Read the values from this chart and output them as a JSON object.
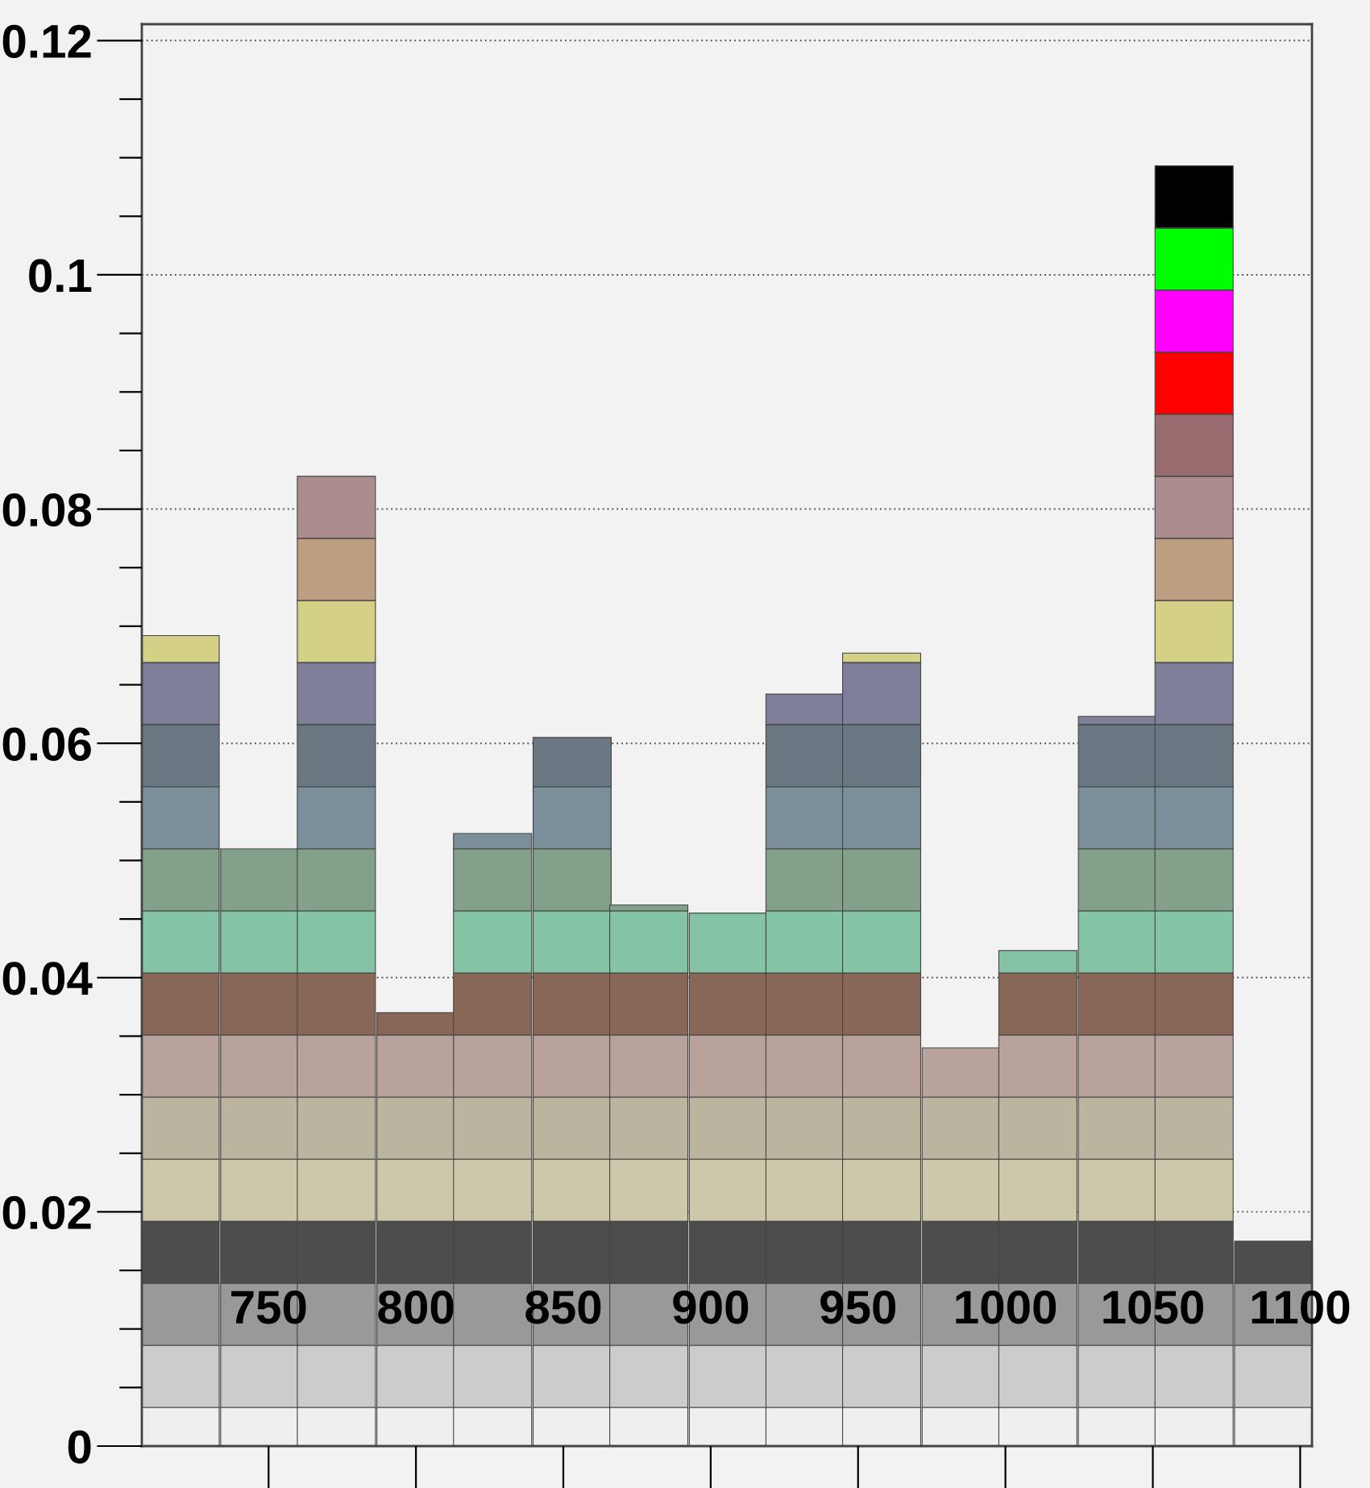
{
  "chart_data": {
    "type": "bar",
    "stacked": true,
    "x": [
      720,
      747,
      773,
      800,
      826,
      853,
      879,
      906,
      932,
      958,
      985,
      1011,
      1038,
      1064,
      1091
    ],
    "xlim": [
      707,
      1104
    ],
    "xticks": [
      750,
      800,
      850,
      900,
      950,
      1000,
      1050,
      1100
    ],
    "ylim": [
      0,
      0.1214
    ],
    "yticks": [
      0,
      {
        "value": 0.005,
        "label": null
      },
      {
        "value": 0.01,
        "label": null
      },
      {
        "value": 0.015,
        "label": null
      },
      0.02,
      {
        "value": 0.025,
        "label": null
      },
      {
        "value": 0.03,
        "label": null
      },
      {
        "value": 0.035,
        "label": null
      },
      0.04,
      {
        "value": 0.045,
        "label": null
      },
      {
        "value": 0.05,
        "label": null
      },
      {
        "value": 0.055,
        "label": null
      },
      0.06,
      {
        "value": 0.065,
        "label": null
      },
      {
        "value": 0.07,
        "label": null
      },
      {
        "value": 0.075,
        "label": null
      },
      0.08,
      {
        "value": 0.085,
        "label": null
      },
      {
        "value": 0.09,
        "label": null
      },
      {
        "value": 0.095,
        "label": null
      },
      0.1,
      {
        "value": 0.105,
        "label": null
      },
      {
        "value": 0.11,
        "label": null
      },
      {
        "value": 0.115,
        "label": null
      },
      0.12
    ],
    "grid": "y",
    "series": [
      {
        "color": "#efefef",
        "values": [
          0.0033,
          0.0033,
          0.0033,
          0.0033,
          0.0033,
          0.0033,
          0.0033,
          0.0033,
          0.0033,
          0.0033,
          0.0033,
          0.0033,
          0.0033,
          0.0033,
          0.0033
        ]
      },
      {
        "color": "#cccccc",
        "values": [
          0.0053,
          0.0053,
          0.0053,
          0.0053,
          0.0053,
          0.0053,
          0.0053,
          0.0053,
          0.0053,
          0.0053,
          0.0053,
          0.0053,
          0.0053,
          0.0053,
          0.0053
        ]
      },
      {
        "color": "#999999",
        "values": [
          0.0053,
          0.0053,
          0.0053,
          0.0053,
          0.0053,
          0.0053,
          0.0053,
          0.0053,
          0.0053,
          0.0053,
          0.0053,
          0.0053,
          0.0053,
          0.0053,
          0.0053
        ]
      },
      {
        "color": "#4d4d4d",
        "values": [
          0.0053,
          0.0053,
          0.0053,
          0.0053,
          0.0053,
          0.0053,
          0.0053,
          0.0053,
          0.0053,
          0.0053,
          0.0053,
          0.0053,
          0.0053,
          0.0053,
          0.0036
        ]
      },
      {
        "color": "#cdc8a9",
        "values": [
          0.0053,
          0.0053,
          0.0053,
          0.0053,
          0.0053,
          0.0053,
          0.0053,
          0.0053,
          0.0053,
          0.0053,
          0.0053,
          0.0053,
          0.0053,
          0.0053,
          null
        ]
      },
      {
        "color": "#bbb5a0",
        "values": [
          0.0053,
          0.0053,
          0.0053,
          0.0053,
          0.0053,
          0.0053,
          0.0053,
          0.0053,
          0.0053,
          0.0053,
          0.0053,
          0.0053,
          0.0053,
          0.0053,
          null
        ]
      },
      {
        "color": "#b8a29b",
        "values": [
          0.0053,
          0.0053,
          0.0053,
          0.0053,
          0.0053,
          0.0053,
          0.0053,
          0.0053,
          0.0053,
          0.0053,
          0.0042,
          0.0053,
          0.0053,
          0.0053,
          null
        ]
      },
      {
        "color": "#896757",
        "values": [
          0.0053,
          0.0053,
          0.0053,
          0.0019,
          0.0053,
          0.0053,
          0.0053,
          0.0053,
          0.0053,
          0.0053,
          null,
          0.0053,
          0.0053,
          0.0053,
          null
        ]
      },
      {
        "color": "#84c3a3",
        "values": [
          0.0053,
          0.0053,
          0.0053,
          null,
          0.0053,
          0.0053,
          0.0053,
          0.0051,
          0.0053,
          0.0053,
          null,
          0.0019,
          0.0053,
          0.0053,
          null
        ]
      },
      {
        "color": "#82a08a",
        "values": [
          0.0053,
          0.0053,
          0.0053,
          null,
          0.0053,
          0.0053,
          0.0005,
          null,
          0.0053,
          0.0053,
          null,
          null,
          0.0053,
          0.0053,
          null
        ]
      },
      {
        "color": "#7a8f99",
        "values": [
          0.0053,
          null,
          0.0053,
          null,
          0.0013,
          0.0053,
          null,
          null,
          0.0053,
          0.0053,
          null,
          null,
          0.0053,
          0.0053,
          null
        ]
      },
      {
        "color": "#6b7884",
        "values": [
          0.0053,
          null,
          0.0053,
          null,
          null,
          0.0042,
          null,
          null,
          0.0053,
          0.0053,
          null,
          null,
          0.0053,
          0.0053,
          null
        ]
      },
      {
        "color": "#7f7f99",
        "values": [
          0.0053,
          null,
          0.0053,
          null,
          null,
          null,
          null,
          null,
          0.0026,
          0.0053,
          null,
          null,
          0.0007,
          0.0053,
          null
        ]
      },
      {
        "color": "#d4d186",
        "values": [
          0.0023,
          null,
          0.0053,
          null,
          null,
          null,
          null,
          null,
          null,
          0.0008,
          null,
          null,
          null,
          0.0053,
          null
        ]
      },
      {
        "color": "#bd9e80",
        "values": [
          null,
          null,
          0.0053,
          null,
          null,
          null,
          null,
          null,
          null,
          null,
          null,
          null,
          null,
          0.0053,
          null
        ]
      },
      {
        "color": "#ab8c8f",
        "values": [
          null,
          null,
          0.0053,
          null,
          null,
          null,
          null,
          null,
          null,
          null,
          null,
          null,
          null,
          0.0053,
          null
        ]
      },
      {
        "color": "#986b6f",
        "values": [
          null,
          null,
          null,
          null,
          null,
          null,
          null,
          null,
          null,
          null,
          null,
          null,
          null,
          0.0053,
          null
        ]
      },
      {
        "color": "#ff0000",
        "values": [
          null,
          null,
          null,
          null,
          null,
          null,
          null,
          null,
          null,
          null,
          null,
          null,
          null,
          0.0053,
          null
        ]
      },
      {
        "color": "#ff00ff",
        "values": [
          null,
          null,
          null,
          null,
          null,
          null,
          null,
          null,
          null,
          null,
          null,
          null,
          null,
          0.0053,
          null
        ]
      },
      {
        "color": "#00ff00",
        "values": [
          null,
          null,
          null,
          null,
          null,
          null,
          null,
          null,
          null,
          null,
          null,
          null,
          null,
          0.0053,
          null
        ]
      },
      {
        "color": "#000000",
        "values": [
          null,
          null,
          null,
          null,
          null,
          null,
          null,
          null,
          null,
          null,
          null,
          null,
          null,
          0.0053,
          null
        ]
      }
    ]
  }
}
